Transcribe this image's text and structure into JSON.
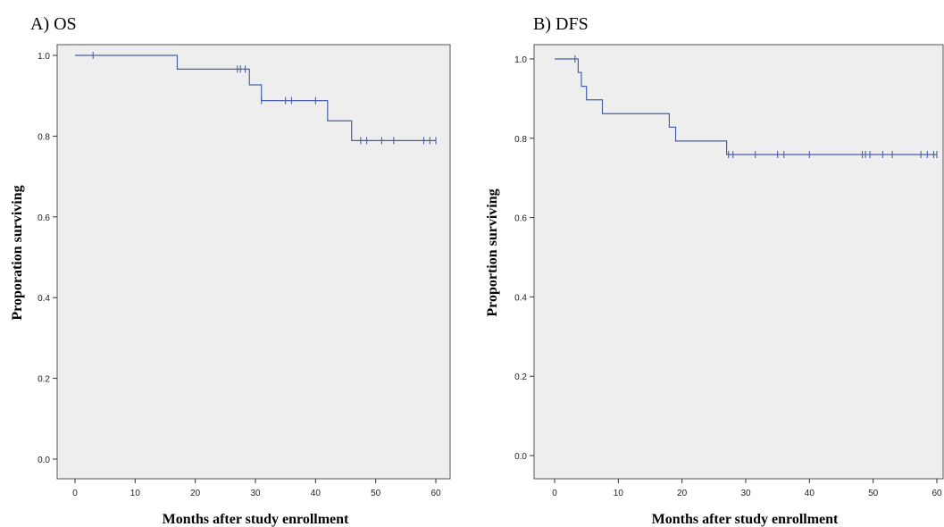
{
  "chart_data": [
    {
      "type": "line",
      "panel_title": "A) OS",
      "xlabel": "Months after study enrollment",
      "ylabel": "Proporation  surviving",
      "xlim": [
        0,
        60
      ],
      "ylim": [
        0,
        1
      ],
      "x_ticks": [
        0,
        10,
        20,
        30,
        40,
        50,
        60
      ],
      "y_ticks": [
        "0.0",
        "0.2",
        "0.4",
        "0.6",
        "0.8",
        "1.0"
      ],
      "line_color": "#4b5fa6",
      "background": "#eeeeee",
      "grid": false,
      "series": [
        {
          "steps": [
            {
              "x": 0,
              "y": 1.0
            },
            {
              "x": 17,
              "y": 0.966
            },
            {
              "x": 29,
              "y": 0.927
            },
            {
              "x": 31,
              "y": 0.888
            },
            {
              "x": 42,
              "y": 0.838
            },
            {
              "x": 46,
              "y": 0.789
            }
          ],
          "x_end": 60,
          "censored": [
            {
              "x": 3,
              "y": 1.0
            },
            {
              "x": 27,
              "y": 0.966
            },
            {
              "x": 27.5,
              "y": 0.966
            },
            {
              "x": 28.3,
              "y": 0.966
            },
            {
              "x": 31,
              "y": 0.888
            },
            {
              "x": 35,
              "y": 0.888
            },
            {
              "x": 36,
              "y": 0.888
            },
            {
              "x": 40,
              "y": 0.888
            },
            {
              "x": 47.5,
              "y": 0.789
            },
            {
              "x": 48.5,
              "y": 0.789
            },
            {
              "x": 51,
              "y": 0.789
            },
            {
              "x": 53,
              "y": 0.789
            },
            {
              "x": 58,
              "y": 0.789
            },
            {
              "x": 59,
              "y": 0.789
            },
            {
              "x": 60,
              "y": 0.789
            }
          ]
        }
      ]
    },
    {
      "type": "line",
      "panel_title": "B) DFS",
      "xlabel": "Months after study enrollment",
      "ylabel": "Proportion surviving",
      "xlim": [
        0,
        60
      ],
      "ylim": [
        0,
        1
      ],
      "x_ticks": [
        0,
        10,
        20,
        30,
        40,
        50,
        60
      ],
      "y_ticks": [
        "0.0",
        "0.2",
        "0.4",
        "0.6",
        "0.8",
        "1.0"
      ],
      "line_color": "#4b5fa6",
      "background": "#eeeeee",
      "grid": false,
      "series": [
        {
          "steps": [
            {
              "x": 0,
              "y": 1.0
            },
            {
              "x": 3.7,
              "y": 0.966
            },
            {
              "x": 4.2,
              "y": 0.931
            },
            {
              "x": 5.0,
              "y": 0.897
            },
            {
              "x": 7.5,
              "y": 0.862
            },
            {
              "x": 18.0,
              "y": 0.828
            },
            {
              "x": 19.0,
              "y": 0.793
            },
            {
              "x": 27.0,
              "y": 0.759
            }
          ],
          "x_end": 60,
          "censored": [
            {
              "x": 3.2,
              "y": 1.0
            },
            {
              "x": 27.3,
              "y": 0.759
            },
            {
              "x": 28.0,
              "y": 0.759
            },
            {
              "x": 31.5,
              "y": 0.759
            },
            {
              "x": 35.0,
              "y": 0.759
            },
            {
              "x": 36.0,
              "y": 0.759
            },
            {
              "x": 40.0,
              "y": 0.759
            },
            {
              "x": 48.3,
              "y": 0.759
            },
            {
              "x": 48.8,
              "y": 0.759
            },
            {
              "x": 49.5,
              "y": 0.759
            },
            {
              "x": 51.5,
              "y": 0.759
            },
            {
              "x": 53.0,
              "y": 0.759
            },
            {
              "x": 57.5,
              "y": 0.759
            },
            {
              "x": 58.5,
              "y": 0.759
            },
            {
              "x": 59.5,
              "y": 0.759
            },
            {
              "x": 60.0,
              "y": 0.759
            }
          ]
        }
      ]
    }
  ]
}
